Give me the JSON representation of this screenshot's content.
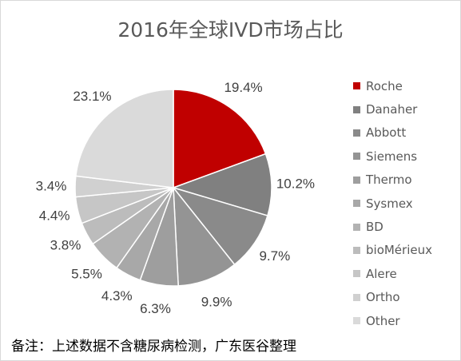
{
  "chart_data": {
    "type": "pie",
    "title": "2016年全球IVD市场占比",
    "slices": [
      {
        "label": "Roche",
        "value": 19.4,
        "value_label": "19.4%",
        "color": "#c00000"
      },
      {
        "label": "Danaher",
        "value": 10.2,
        "value_label": "10.2%",
        "color": "#808080"
      },
      {
        "label": "Abbott",
        "value": 9.7,
        "value_label": "9.7%",
        "color": "#8a8a8a"
      },
      {
        "label": "Siemens",
        "value": 9.9,
        "value_label": "9.9%",
        "color": "#949494"
      },
      {
        "label": "Thermo",
        "value": 6.3,
        "value_label": "6.3%",
        "color": "#9e9e9e"
      },
      {
        "label": "Sysmex",
        "value": 4.3,
        "value_label": "4.3%",
        "color": "#a8a8a8"
      },
      {
        "label": "BD",
        "value": 5.5,
        "value_label": "5.5%",
        "color": "#b2b2b2"
      },
      {
        "label": "bioMérieux",
        "value": 3.8,
        "value_label": "3.8%",
        "color": "#bcbcbc"
      },
      {
        "label": "Alere",
        "value": 4.4,
        "value_label": "4.4%",
        "color": "#c6c6c6"
      },
      {
        "label": "Ortho",
        "value": 3.4,
        "value_label": "3.4%",
        "color": "#d0d0d0"
      },
      {
        "label": "Other",
        "value": 23.1,
        "value_label": "23.1%",
        "color": "#dadada"
      }
    ],
    "legend_position": "right",
    "start_angle": "12 o'clock",
    "direction": "clockwise",
    "slice_border_color": "#ffffff"
  },
  "footnote": "备注：上述数据不含糖尿病检测，广东医谷整理"
}
